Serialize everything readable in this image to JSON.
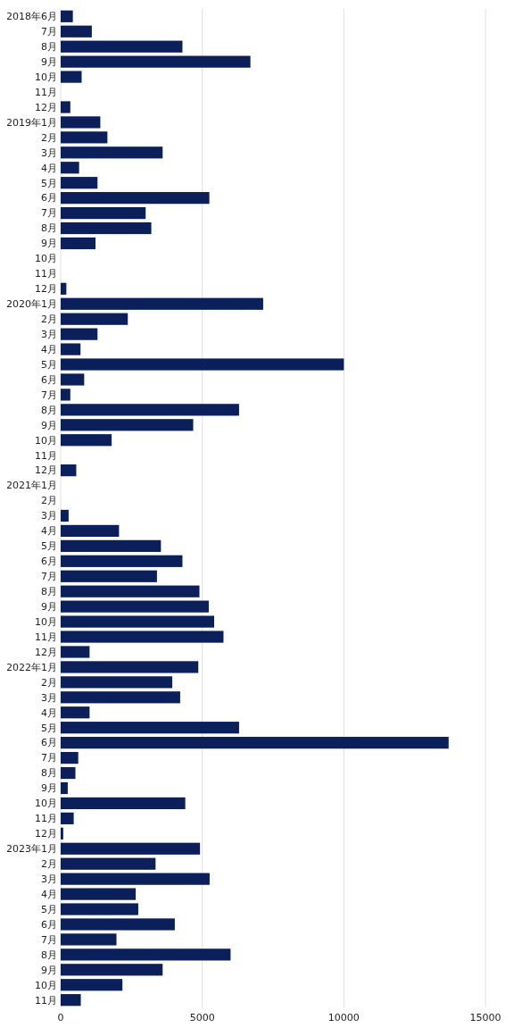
{
  "chart_data": {
    "type": "bar",
    "orientation": "horizontal",
    "categories": [
      "2018年6月",
      "7月",
      "8月",
      "9月",
      "10月",
      "11月",
      "12月",
      "2019年1月",
      "2月",
      "3月",
      "4月",
      "5月",
      "6月",
      "7月",
      "8月",
      "9月",
      "10月",
      "11月",
      "12月",
      "2020年1月",
      "2月",
      "3月",
      "4月",
      "5月",
      "6月",
      "7月",
      "8月",
      "9月",
      "10月",
      "11月",
      "12月",
      "2021年1月",
      "2月",
      "3月",
      "4月",
      "5月",
      "6月",
      "7月",
      "8月",
      "9月",
      "10月",
      "11月",
      "12月",
      "2022年1月",
      "2月",
      "3月",
      "4月",
      "5月",
      "6月",
      "7月",
      "8月",
      "9月",
      "10月",
      "11月",
      "12月",
      "2023年1月",
      "2月",
      "3月",
      "4月",
      "5月",
      "6月",
      "7月",
      "8月",
      "9月",
      "10月",
      "11月"
    ],
    "values": [
      430,
      1100,
      4300,
      6700,
      740,
      0,
      340,
      1400,
      1650,
      3600,
      650,
      1300,
      5250,
      3000,
      3200,
      1230,
      0,
      0,
      200,
      7150,
      2370,
      1300,
      700,
      10000,
      830,
      340,
      6300,
      4680,
      1800,
      0,
      550,
      0,
      0,
      280,
      2060,
      3540,
      4300,
      3400,
      4900,
      5230,
      5420,
      5750,
      1020,
      4860,
      3940,
      4220,
      1020,
      6300,
      13700,
      620,
      520,
      250,
      4400,
      460,
      90,
      4920,
      3350,
      5260,
      2650,
      2740,
      4030,
      1970,
      6000,
      3600,
      2180,
      710
    ],
    "color": "#0b1f5a",
    "xlim": [
      0,
      15000
    ],
    "xticks": [
      0,
      5000,
      10000,
      15000
    ],
    "grid": "x"
  }
}
